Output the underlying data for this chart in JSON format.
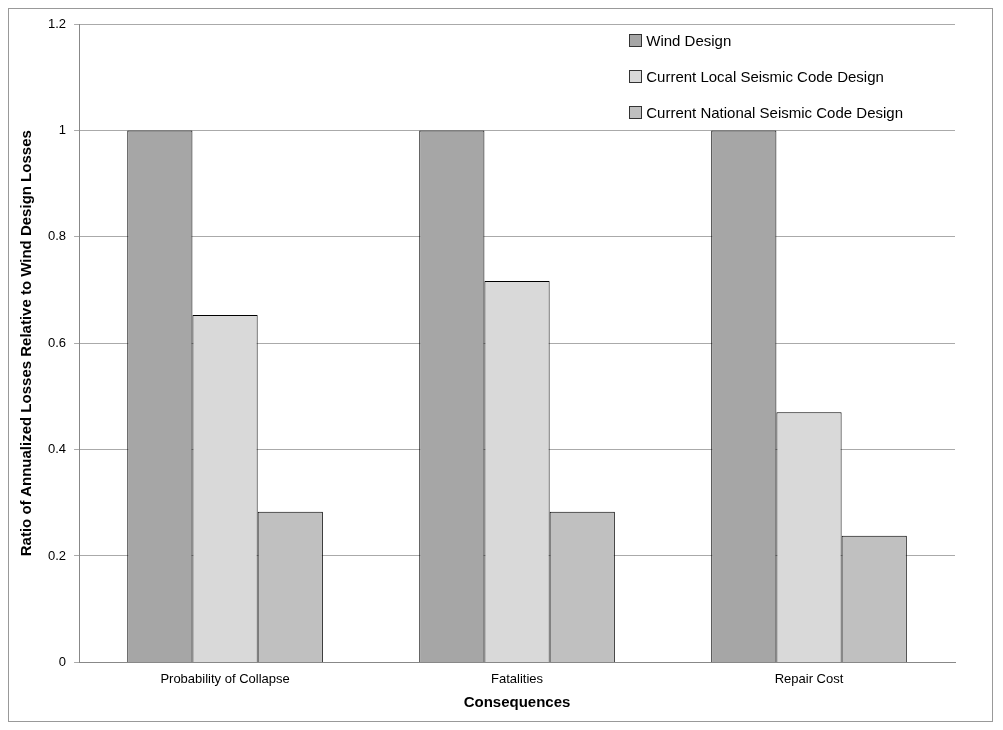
{
  "chart_data": {
    "type": "bar",
    "xlabel": "Consequences",
    "ylabel": "Ratio of Annualized Losses Relative to Wind Design Losses",
    "categories": [
      "Probability of Collapse",
      "Fatalities",
      "Repair Cost"
    ],
    "series": [
      {
        "name": "Wind Design",
        "color": "#a6a6a6",
        "values": [
          1,
          1,
          1
        ]
      },
      {
        "name": "Current Local Seismic Code Design",
        "color": "#d9d9d9",
        "values": [
          0.653,
          0.717,
          0.47
        ]
      },
      {
        "name": "Current National Seismic Code Design",
        "color": "#c0c0c0",
        "values": [
          0.283,
          0.283,
          0.238
        ]
      }
    ],
    "ylim": [
      0,
      1.2
    ],
    "yticks": [
      0,
      0.2,
      0.4,
      0.6,
      0.8,
      1,
      1.2
    ],
    "grid": "y",
    "legend": "top right"
  }
}
